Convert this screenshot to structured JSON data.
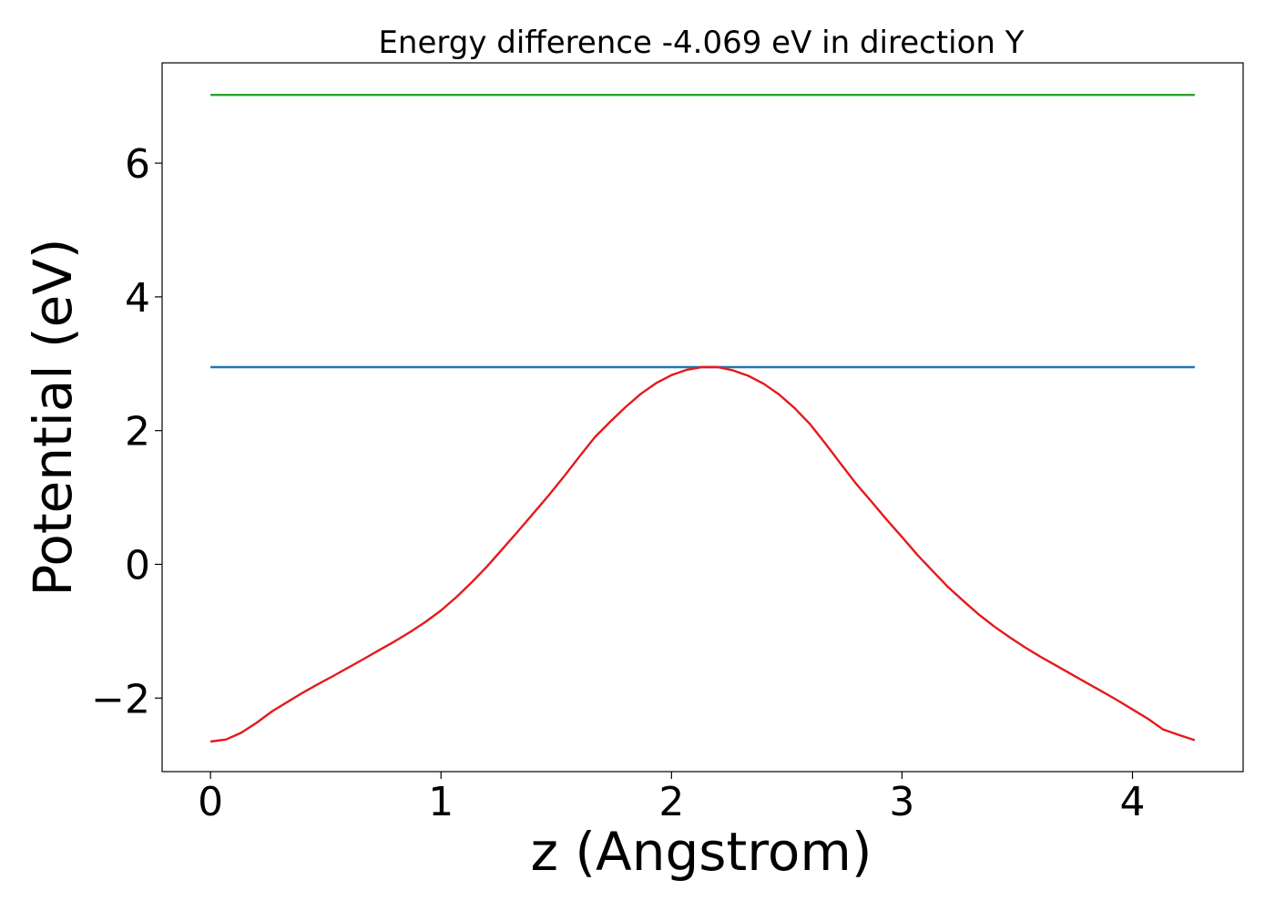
{
  "chart_data": {
    "type": "line",
    "title": "Energy difference -4.069 eV in direction Y",
    "xlabel": "z (Angstrom)",
    "ylabel": "Potential (eV)",
    "xlim": [
      -0.21,
      4.48
    ],
    "ylim": [
      -3.1,
      7.5
    ],
    "xticks": [
      0,
      1,
      2,
      3,
      4
    ],
    "xtick_labels": [
      "0",
      "1",
      "2",
      "3",
      "4"
    ],
    "yticks": [
      -2,
      0,
      2,
      4,
      6
    ],
    "ytick_labels": [
      "−2",
      "0",
      "2",
      "4",
      "6"
    ],
    "grid": false,
    "series": [
      {
        "color": "#2ca02c",
        "x": [
          0,
          4.27
        ],
        "y": [
          7.02,
          7.02
        ]
      },
      {
        "color": "#1f77b4",
        "x": [
          0,
          4.27
        ],
        "y": [
          2.95,
          2.95
        ]
      },
      {
        "color": "#e31a1c",
        "x": [
          0,
          0.067,
          0.133,
          0.2,
          0.267,
          0.333,
          0.4,
          0.467,
          0.533,
          0.6,
          0.667,
          0.733,
          0.8,
          0.867,
          0.933,
          1.0,
          1.067,
          1.133,
          1.2,
          1.267,
          1.333,
          1.4,
          1.467,
          1.533,
          1.6,
          1.667,
          1.733,
          1.8,
          1.867,
          1.933,
          2.0,
          2.067,
          2.133,
          2.2,
          2.267,
          2.333,
          2.4,
          2.467,
          2.533,
          2.6,
          2.667,
          2.733,
          2.8,
          2.867,
          2.933,
          3.0,
          3.067,
          3.133,
          3.2,
          3.267,
          3.333,
          3.4,
          3.467,
          3.533,
          3.6,
          3.667,
          3.733,
          3.8,
          3.867,
          3.933,
          4.0,
          4.067,
          4.133,
          4.2,
          4.27
        ],
        "y": [
          -2.65,
          -2.62,
          -2.52,
          -2.37,
          -2.2,
          -2.06,
          -1.92,
          -1.79,
          -1.67,
          -1.54,
          -1.41,
          -1.28,
          -1.15,
          -1.01,
          -0.86,
          -0.69,
          -0.49,
          -0.27,
          -0.03,
          0.23,
          0.49,
          0.76,
          1.03,
          1.31,
          1.61,
          1.9,
          2.13,
          2.35,
          2.55,
          2.71,
          2.83,
          2.91,
          2.95,
          2.95,
          2.9,
          2.82,
          2.7,
          2.54,
          2.34,
          2.1,
          1.81,
          1.51,
          1.21,
          0.94,
          0.67,
          0.41,
          0.14,
          -0.1,
          -0.34,
          -0.55,
          -0.75,
          -0.93,
          -1.09,
          -1.24,
          -1.38,
          -1.51,
          -1.64,
          -1.77,
          -1.9,
          -2.03,
          -2.17,
          -2.31,
          -2.47,
          -2.55,
          -2.63
        ]
      }
    ]
  }
}
